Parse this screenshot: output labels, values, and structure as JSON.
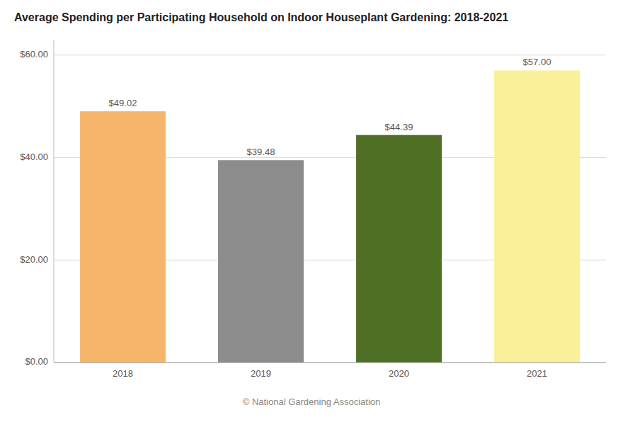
{
  "chart_data": {
    "type": "bar",
    "title": "Average Spending per Participating Household on Indoor Houseplant Gardening: 2018-2021",
    "categories": [
      "2018",
      "2019",
      "2020",
      "2021"
    ],
    "values": [
      49.02,
      39.48,
      44.39,
      57.0
    ],
    "value_labels": [
      "$49.02",
      "$39.48",
      "$44.39",
      "$57.00"
    ],
    "colors": [
      "#F5B56A",
      "#8C8C8C",
      "#4F7024",
      "#FAF09A"
    ],
    "ylim": [
      0,
      63
    ],
    "yticks": [
      {
        "value": 0,
        "label": "$0.00"
      },
      {
        "value": 20,
        "label": "$20.00"
      },
      {
        "value": 40,
        "label": "$40.00"
      },
      {
        "value": 60,
        "label": "$60.00"
      }
    ],
    "grid": true,
    "data_labels": true,
    "annotations": [
      "© National Gardening Association"
    ]
  }
}
